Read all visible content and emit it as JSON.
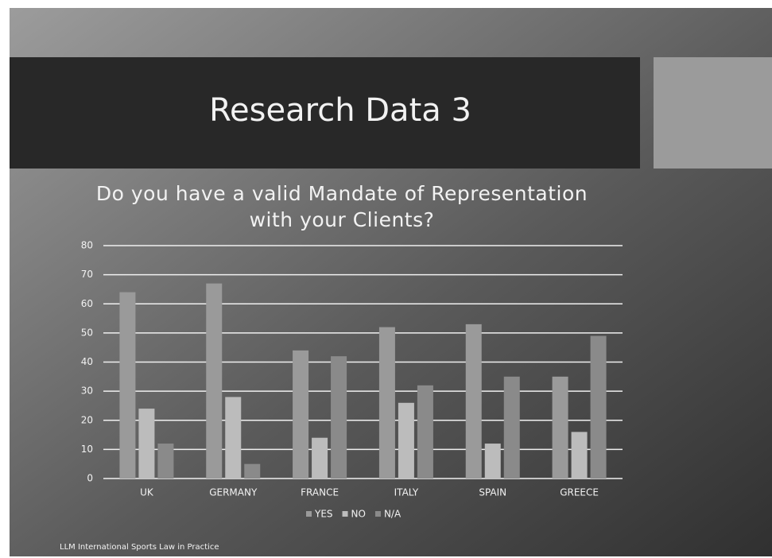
{
  "slide_title": "Research Data 3",
  "footer": "LLM International Sports Law in Practice",
  "chart_data": {
    "type": "bar",
    "title": [
      "Do you have a valid Mandate of Representation",
      "with your Clients?"
    ],
    "categories": [
      "UK",
      "GERMANY",
      "FRANCE",
      "ITALY",
      "SPAIN",
      "GREECE"
    ],
    "series": [
      {
        "name": "YES",
        "color": "#9a9a9a",
        "values": [
          64,
          67,
          44,
          52,
          53,
          35
        ]
      },
      {
        "name": "NO",
        "color": "#bcbcbc",
        "values": [
          24,
          28,
          14,
          26,
          12,
          16
        ]
      },
      {
        "name": "N/A",
        "color": "#8a8a8a",
        "values": [
          12,
          5,
          42,
          32,
          35,
          49
        ]
      }
    ],
    "ylim": [
      0,
      80
    ],
    "yticks": [
      0,
      10,
      20,
      30,
      40,
      50,
      60,
      70,
      80
    ],
    "grid": true,
    "legend": "bottom"
  }
}
